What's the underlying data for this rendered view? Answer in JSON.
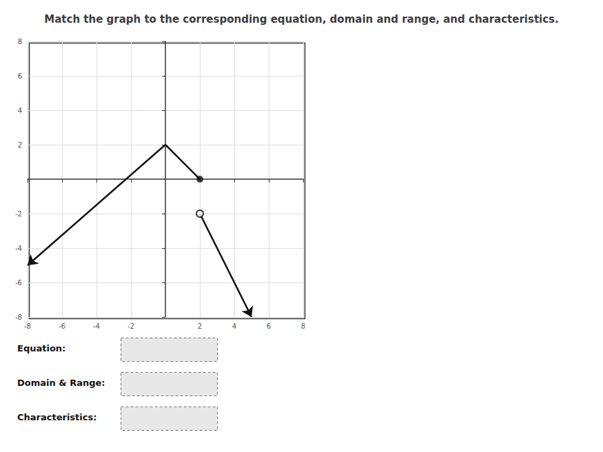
{
  "chart_data": {
    "type": "line",
    "title": "Match the graph to the corresponding equation, domain and range, and characteristics.",
    "xlim": [
      -8,
      8
    ],
    "ylim": [
      -8,
      8
    ],
    "xticks": [
      -8,
      -6,
      -4,
      -2,
      2,
      4,
      6,
      8
    ],
    "yticks": [
      -8,
      -6,
      -4,
      -2,
      2,
      4,
      6,
      8
    ],
    "grid": true,
    "series": [
      {
        "type": "line",
        "color": "#111111",
        "x": [
          -8,
          0
        ],
        "values": [
          -5,
          2
        ],
        "marker": "arrow_start"
      },
      {
        "type": "line",
        "color": "#111111",
        "x": [
          0,
          2
        ],
        "values": [
          2,
          0
        ]
      },
      {
        "type": "line",
        "color": "#111111",
        "x": [
          2,
          5
        ],
        "values": [
          -2,
          -8
        ],
        "marker": "arrow_end"
      },
      {
        "type": "scatter",
        "color": "#111111",
        "x": [
          2
        ],
        "values": [
          0
        ],
        "marker": "filled_circle"
      },
      {
        "type": "scatter",
        "color": "#111111",
        "x": [
          2
        ],
        "values": [
          -2
        ],
        "marker": "open_circle"
      }
    ],
    "annotations": [
      "Equation:",
      "Domain & Range:",
      "Characteristics:"
    ]
  }
}
